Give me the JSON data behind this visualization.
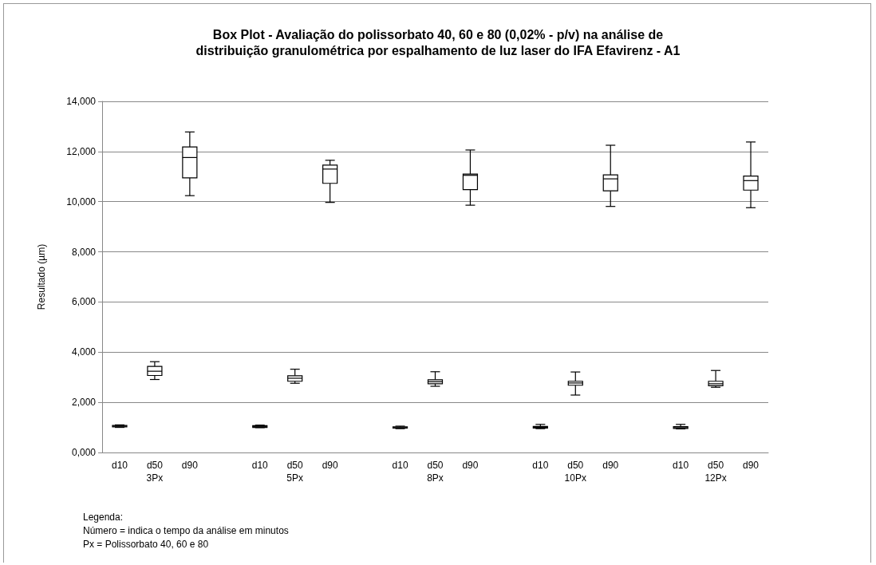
{
  "chart_data": {
    "type": "box",
    "title": "Box Plot - Avaliação do polissorbato 40, 60 e 80 (0,02% - p/v) na análise de\ndistribuição granulométrica por espalhamento de luz laser do IFA Efavirenz - A1",
    "ylabel": "Resultado (µm)",
    "categories": [
      "d10",
      "d50\n3Px",
      "d90",
      null,
      "d10",
      "d50\n5Px",
      "d90",
      null,
      "d10",
      "d50\n8Px",
      "d90",
      null,
      "d10",
      "d50\n10Px",
      "d90",
      null,
      "d10",
      "d50\n12Px",
      "d90"
    ],
    "boxes": [
      {
        "low": 1.0,
        "q1": 1.02,
        "median": 1.05,
        "q3": 1.08,
        "high": 1.1
      },
      {
        "low": 2.91,
        "q1": 3.07,
        "median": 3.24,
        "q3": 3.43,
        "high": 3.62
      },
      {
        "low": 10.24,
        "q1": 10.95,
        "median": 11.76,
        "q3": 12.18,
        "high": 12.78
      },
      null,
      {
        "low": 0.99,
        "q1": 1.0,
        "median": 1.04,
        "q3": 1.07,
        "high": 1.09
      },
      {
        "low": 2.76,
        "q1": 2.84,
        "median": 2.96,
        "q3": 3.06,
        "high": 3.32
      },
      {
        "low": 9.97,
        "q1": 10.73,
        "median": 11.3,
        "q3": 11.46,
        "high": 11.65
      },
      null,
      {
        "low": 0.95,
        "q1": 0.97,
        "median": 0.99,
        "q3": 1.02,
        "high": 1.05
      },
      {
        "low": 2.64,
        "q1": 2.74,
        "median": 2.82,
        "q3": 2.9,
        "high": 3.22
      },
      {
        "low": 9.86,
        "q1": 10.48,
        "median": 11.05,
        "q3": 11.1,
        "high": 12.06
      },
      null,
      {
        "low": 0.95,
        "q1": 0.97,
        "median": 1.0,
        "q3": 1.04,
        "high": 1.12
      },
      {
        "low": 2.29,
        "q1": 2.68,
        "median": 2.77,
        "q3": 2.84,
        "high": 3.21
      },
      {
        "low": 9.81,
        "q1": 10.43,
        "median": 10.91,
        "q3": 11.07,
        "high": 12.25
      },
      null,
      {
        "low": 0.94,
        "q1": 0.96,
        "median": 0.99,
        "q3": 1.03,
        "high": 1.12
      },
      {
        "low": 2.6,
        "q1": 2.66,
        "median": 2.74,
        "q3": 2.84,
        "high": 3.27
      },
      {
        "low": 9.76,
        "q1": 10.46,
        "median": 10.84,
        "q3": 11.02,
        "high": 12.38
      }
    ],
    "color": "#000000",
    "ylim": [
      0,
      14
    ],
    "yticks": [
      {
        "value": 0,
        "label": "0,000"
      },
      {
        "value": 2,
        "label": "2,000"
      },
      {
        "value": 4,
        "label": "4,000"
      },
      {
        "value": 6,
        "label": "6,000"
      },
      {
        "value": 8,
        "label": "8,000"
      },
      {
        "value": 10,
        "label": "10,000"
      },
      {
        "value": 12,
        "label": "12,000"
      },
      {
        "value": 14,
        "label": "14,000"
      }
    ],
    "grid": "y",
    "annotations": [
      "Legenda:",
      "Número = indica o tempo da análise em minutos",
      "Px = Polissorbato 40, 60 e 80"
    ]
  }
}
